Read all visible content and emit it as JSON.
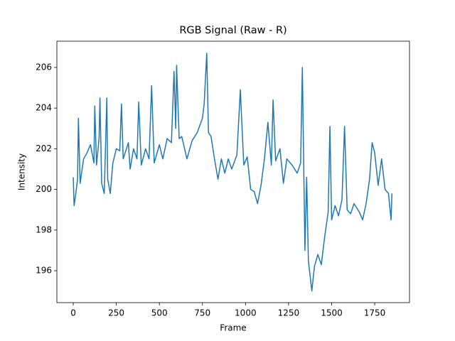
{
  "chart_data": {
    "type": "line",
    "title": "RGB Signal (Raw - R)",
    "x_label": "Frame",
    "y_label": "Intensity",
    "color": "#1f77b4",
    "xlim": [
      -95,
      1952
    ],
    "ylim": [
      194.43,
      207.29
    ],
    "xticks": [
      0,
      250,
      500,
      750,
      1000,
      1250,
      1500,
      1750
    ],
    "yticks": [
      196,
      198,
      200,
      202,
      204,
      206
    ],
    "x": [
      0,
      5,
      15,
      25,
      30,
      40,
      60,
      80,
      100,
      120,
      125,
      135,
      150,
      155,
      165,
      180,
      195,
      200,
      215,
      230,
      250,
      270,
      280,
      290,
      320,
      330,
      350,
      370,
      380,
      395,
      420,
      440,
      455,
      470,
      500,
      520,
      545,
      570,
      585,
      595,
      600,
      615,
      630,
      660,
      690,
      720,
      750,
      760,
      775,
      785,
      800,
      820,
      840,
      860,
      880,
      900,
      920,
      950,
      970,
      990,
      1010,
      1030,
      1050,
      1070,
      1090,
      1110,
      1130,
      1150,
      1160,
      1175,
      1200,
      1220,
      1240,
      1270,
      1300,
      1320,
      1330,
      1345,
      1355,
      1365,
      1385,
      1400,
      1420,
      1440,
      1460,
      1480,
      1490,
      1500,
      1520,
      1540,
      1560,
      1575,
      1590,
      1610,
      1630,
      1660,
      1680,
      1700,
      1720,
      1735,
      1750,
      1770,
      1790,
      1810,
      1830,
      1845,
      1850
    ],
    "values": [
      200.6,
      199.2,
      199.8,
      200.5,
      203.5,
      200.3,
      201.5,
      201.8,
      202.2,
      201.3,
      204.1,
      201.2,
      202.5,
      204.5,
      200.3,
      199.8,
      204.5,
      200.5,
      199.8,
      201.3,
      202,
      201.9,
      204.2,
      201.5,
      202.3,
      201,
      202,
      201.5,
      204.3,
      201.2,
      202,
      201.5,
      205.1,
      201.3,
      202.2,
      201.5,
      202.5,
      202.3,
      205.8,
      203,
      206.1,
      202.5,
      202.6,
      201.5,
      202.4,
      202.8,
      203.5,
      204.2,
      206.7,
      202.8,
      202.6,
      201.5,
      200.5,
      201.5,
      200.8,
      201.5,
      201,
      201.7,
      204.9,
      201.2,
      201.6,
      200,
      199.9,
      199.3,
      200.2,
      201.5,
      203.3,
      201.2,
      204.4,
      201.4,
      202,
      200.3,
      201.5,
      201.2,
      200.8,
      201.3,
      206,
      197,
      200.6,
      196.5,
      195,
      196.2,
      196.8,
      196.3,
      197.7,
      198.9,
      203.1,
      198.5,
      199.2,
      198.7,
      199.5,
      203.1,
      199,
      198.8,
      199.3,
      198.9,
      198.5,
      199.3,
      200.5,
      202.3,
      201.8,
      200.2,
      201.5,
      200,
      199.8,
      198.5,
      199.8
    ]
  }
}
